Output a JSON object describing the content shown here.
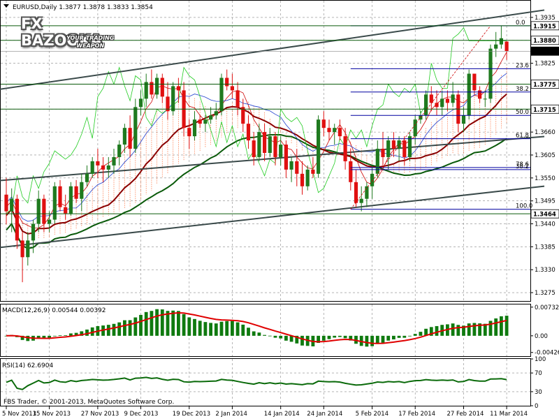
{
  "header": {
    "symbol_info": "EURUSD,Daily  1.3877 1.3878 1.3833 1.3854"
  },
  "logo": {
    "main": "FX BAZOOKA",
    "sub1": "YOUR TRADING",
    "sub2": "WEAPON"
  },
  "footer": {
    "copyright": "FBS Trader, © 2001-2013, MetaQuotes Software Corp."
  },
  "indicators": {
    "macd_label": "MACD(12,26,9) 0.00544 0.00392",
    "rsi_label": "RSI(14) 62.6904"
  },
  "colors": {
    "bull": "#1f7a1f",
    "bear": "#e01010",
    "channel": "#3a4a4a",
    "fib": "#0000a0",
    "sma_long": "#0a5a0a",
    "sma_mid": "#8b0000",
    "rsi_line": "#0a6a0a",
    "macd_signal": "#e00000",
    "cloud": "#ff7f50",
    "grid": "#000000"
  },
  "chart_data": [
    {
      "type": "candlestick",
      "title": "EURUSD,Daily",
      "price_axis_ticks": [
        "1.3935",
        "1.3880",
        "1.3825",
        "1.3775",
        "1.3715",
        "1.3660",
        "1.3605",
        "1.3550",
        "1.3495",
        "1.3440",
        "1.3385",
        "1.3330",
        "1.3275"
      ],
      "price_markers": [
        "1.3915",
        "1.3880",
        "1.3854",
        "1.3775",
        "1.3715",
        "1.3464"
      ],
      "ylim": [
        1.3255,
        1.3975
      ],
      "date_ticks": [
        "5 Nov 2013",
        "15 Nov 2013",
        "27 Nov 2013",
        "9 Dec 2013",
        "19 Dec 2013",
        "2 Jan 2014",
        "14 Jan 2014",
        "24 Jan 2014",
        "5 Feb 2014",
        "17 Feb 2014",
        "27 Feb 2014",
        "11 Mar 2014"
      ],
      "fibonacci": [
        {
          "label": "0.0",
          "price": 1.3915
        },
        {
          "label": "23.6",
          "price": 1.3812
        },
        {
          "label": "38.2",
          "price": 1.3756
        },
        {
          "label": "50.0",
          "price": 1.37
        },
        {
          "label": "61.8",
          "price": 1.3644
        },
        {
          "label": "78.6",
          "price": 1.3575
        },
        {
          "label": "38.2",
          "price": 1.357
        },
        {
          "label": "100.0",
          "price": 1.3475
        }
      ],
      "candles": [
        [
          1.351,
          1.355,
          1.344,
          1.347
        ],
        [
          1.347,
          1.3525,
          1.342,
          1.35
        ],
        [
          1.35,
          1.351,
          1.338,
          1.34
        ],
        [
          1.34,
          1.342,
          1.33,
          1.336
        ],
        [
          1.336,
          1.342,
          1.334,
          1.34
        ],
        [
          1.34,
          1.345,
          1.337,
          1.344
        ],
        [
          1.344,
          1.352,
          1.342,
          1.35
        ],
        [
          1.35,
          1.351,
          1.342,
          1.344
        ],
        [
          1.344,
          1.347,
          1.342,
          1.345
        ],
        [
          1.345,
          1.354,
          1.344,
          1.353
        ],
        [
          1.353,
          1.3545,
          1.347,
          1.348
        ],
        [
          1.348,
          1.351,
          1.345,
          1.3465
        ],
        [
          1.3465,
          1.354,
          1.346,
          1.353
        ],
        [
          1.353,
          1.3545,
          1.349,
          1.35
        ],
        [
          1.35,
          1.356,
          1.347,
          1.354
        ],
        [
          1.354,
          1.358,
          1.353,
          1.356
        ],
        [
          1.356,
          1.36,
          1.355,
          1.359
        ],
        [
          1.359,
          1.362,
          1.355,
          1.358
        ],
        [
          1.358,
          1.36,
          1.354,
          1.357
        ],
        [
          1.357,
          1.36,
          1.355,
          1.358
        ],
        [
          1.358,
          1.362,
          1.356,
          1.36
        ],
        [
          1.36,
          1.364,
          1.358,
          1.363
        ],
        [
          1.363,
          1.368,
          1.361,
          1.367
        ],
        [
          1.367,
          1.37,
          1.36,
          1.362
        ],
        [
          1.362,
          1.374,
          1.361,
          1.372
        ],
        [
          1.372,
          1.376,
          1.37,
          1.374
        ],
        [
          1.374,
          1.38,
          1.372,
          1.378
        ],
        [
          1.378,
          1.381,
          1.374,
          1.375
        ],
        [
          1.375,
          1.38,
          1.374,
          1.379
        ],
        [
          1.379,
          1.38,
          1.373,
          1.3745
        ],
        [
          1.3745,
          1.378,
          1.369,
          1.371
        ],
        [
          1.371,
          1.378,
          1.37,
          1.377
        ],
        [
          1.377,
          1.379,
          1.373,
          1.376
        ],
        [
          1.376,
          1.378,
          1.365,
          1.367
        ],
        [
          1.367,
          1.369,
          1.362,
          1.365
        ],
        [
          1.365,
          1.371,
          1.364,
          1.369
        ],
        [
          1.369,
          1.37,
          1.367,
          1.368
        ],
        [
          1.368,
          1.37,
          1.366,
          1.369
        ],
        [
          1.369,
          1.372,
          1.368,
          1.37
        ],
        [
          1.37,
          1.373,
          1.369,
          1.371
        ],
        [
          1.371,
          1.38,
          1.37,
          1.379
        ],
        [
          1.379,
          1.381,
          1.376,
          1.377
        ],
        [
          1.377,
          1.38,
          1.374,
          1.376
        ],
        [
          1.376,
          1.378,
          1.37,
          1.372
        ],
        [
          1.372,
          1.374,
          1.366,
          1.368
        ],
        [
          1.368,
          1.37,
          1.362,
          1.364
        ],
        [
          1.364,
          1.366,
          1.358,
          1.36
        ],
        [
          1.36,
          1.368,
          1.359,
          1.366
        ],
        [
          1.366,
          1.368,
          1.359,
          1.361
        ],
        [
          1.361,
          1.367,
          1.36,
          1.365
        ],
        [
          1.365,
          1.366,
          1.358,
          1.36
        ],
        [
          1.36,
          1.365,
          1.358,
          1.363
        ],
        [
          1.363,
          1.364,
          1.355,
          1.357
        ],
        [
          1.357,
          1.36,
          1.354,
          1.359
        ],
        [
          1.359,
          1.362,
          1.353,
          1.356
        ],
        [
          1.356,
          1.359,
          1.351,
          1.353
        ],
        [
          1.353,
          1.358,
          1.352,
          1.357
        ],
        [
          1.357,
          1.36,
          1.355,
          1.356
        ],
        [
          1.356,
          1.37,
          1.355,
          1.369
        ],
        [
          1.369,
          1.371,
          1.365,
          1.367
        ],
        [
          1.367,
          1.369,
          1.364,
          1.366
        ],
        [
          1.366,
          1.368,
          1.363,
          1.367
        ],
        [
          1.367,
          1.369,
          1.364,
          1.365
        ],
        [
          1.365,
          1.367,
          1.357,
          1.359
        ],
        [
          1.359,
          1.362,
          1.352,
          1.354
        ],
        [
          1.354,
          1.357,
          1.348,
          1.349
        ],
        [
          1.349,
          1.353,
          1.347,
          1.35
        ],
        [
          1.35,
          1.354,
          1.348,
          1.353
        ],
        [
          1.353,
          1.358,
          1.35,
          1.356
        ],
        [
          1.356,
          1.364,
          1.355,
          1.362
        ],
        [
          1.362,
          1.366,
          1.358,
          1.36
        ],
        [
          1.36,
          1.365,
          1.357,
          1.364
        ],
        [
          1.364,
          1.366,
          1.36,
          1.362
        ],
        [
          1.362,
          1.365,
          1.359,
          1.364
        ],
        [
          1.364,
          1.365,
          1.358,
          1.36
        ],
        [
          1.36,
          1.366,
          1.359,
          1.365
        ],
        [
          1.365,
          1.37,
          1.363,
          1.369
        ],
        [
          1.369,
          1.371,
          1.368,
          1.37
        ],
        [
          1.37,
          1.376,
          1.369,
          1.375
        ],
        [
          1.375,
          1.377,
          1.371,
          1.373
        ],
        [
          1.373,
          1.376,
          1.37,
          1.372
        ],
        [
          1.372,
          1.376,
          1.37,
          1.374
        ],
        [
          1.374,
          1.376,
          1.371,
          1.373
        ],
        [
          1.373,
          1.378,
          1.372,
          1.375
        ],
        [
          1.375,
          1.376,
          1.366,
          1.368
        ],
        [
          1.368,
          1.372,
          1.366,
          1.37
        ],
        [
          1.37,
          1.381,
          1.369,
          1.38
        ],
        [
          1.38,
          1.38,
          1.375,
          1.376
        ],
        [
          1.376,
          1.377,
          1.373,
          1.374
        ],
        [
          1.374,
          1.376,
          1.372,
          1.374
        ],
        [
          1.374,
          1.387,
          1.373,
          1.386
        ],
        [
          1.386,
          1.39,
          1.384,
          1.387
        ],
        [
          1.387,
          1.3915,
          1.386,
          1.3885
        ],
        [
          1.3877,
          1.3878,
          1.3833,
          1.3854
        ]
      ]
    },
    {
      "type": "bar",
      "title": "MACD(12,26,9) 0.00544 0.00392",
      "axis_ticks": [
        "0.00732",
        "0.00",
        "-0.00426"
      ],
      "ylim": [
        -0.0052,
        0.008
      ]
    },
    {
      "type": "line",
      "title": "RSI(14) 62.6904",
      "axis_ticks": [
        "100",
        "70",
        "30",
        "0"
      ],
      "ylim": [
        0,
        100
      ]
    }
  ]
}
